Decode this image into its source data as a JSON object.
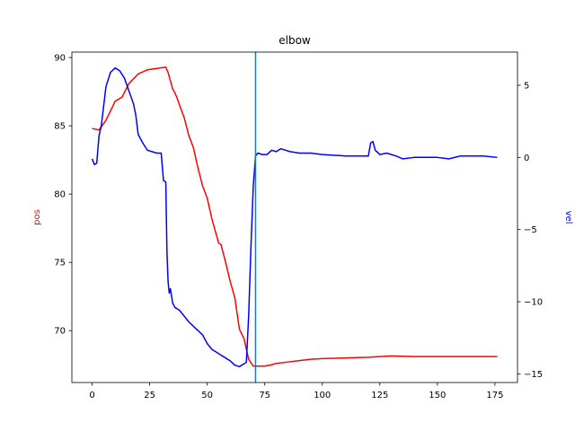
{
  "chart_data": {
    "type": "line",
    "title": "elbow",
    "xlabel": "",
    "ylabel_left": "pos",
    "ylabel_right": "vel",
    "xlim": [
      -8.8,
      184.8
    ],
    "ylim_left": [
      66.2,
      90.4
    ],
    "ylim_right": [
      -15.6,
      7.3
    ],
    "x_ticks": [
      0,
      25,
      50,
      75,
      100,
      125,
      150,
      175
    ],
    "y_left_ticks": [
      70,
      75,
      80,
      85,
      90
    ],
    "y_right_ticks": [
      -15,
      -10,
      -5,
      0,
      5
    ],
    "grid": false,
    "vline": {
      "x": 71,
      "color": "#1f77b4"
    },
    "series": [
      {
        "axis": "left",
        "color": "#ff0000",
        "x": [
          0,
          3,
          6,
          8,
          10,
          13,
          16,
          20,
          24,
          28,
          32,
          33,
          34,
          35,
          36,
          37,
          38,
          40,
          42,
          44,
          46,
          48,
          50,
          52,
          54,
          55,
          56,
          58,
          60,
          62,
          64,
          66,
          68,
          70,
          72,
          75,
          78,
          80,
          85,
          90,
          95,
          100,
          110,
          120,
          125,
          130,
          140,
          150,
          160,
          176
        ],
        "values": [
          84.8,
          84.7,
          85.4,
          86.1,
          86.8,
          87.1,
          88.1,
          88.8,
          89.1,
          89.2,
          89.3,
          88.9,
          88.3,
          87.7,
          87.4,
          87.0,
          86.5,
          85.6,
          84.3,
          83.4,
          81.9,
          80.6,
          79.7,
          78.2,
          77.0,
          76.4,
          76.3,
          75.0,
          73.6,
          72.4,
          70.1,
          69.4,
          67.9,
          67.4,
          67.4,
          67.4,
          67.5,
          67.6,
          67.7,
          67.8,
          67.9,
          67.95,
          68.0,
          68.05,
          68.1,
          68.15,
          68.1,
          68.1,
          68.1,
          68.1
        ]
      },
      {
        "axis": "right",
        "color": "#0000ff",
        "x": [
          0,
          1,
          2,
          3,
          4,
          6,
          8,
          10,
          12,
          14,
          16,
          18,
          19,
          20,
          22,
          24,
          26,
          28,
          30,
          31,
          32,
          32.5,
          33,
          33.5,
          34,
          35,
          36,
          38,
          40,
          42,
          44,
          46,
          48,
          50,
          52,
          54,
          56,
          58,
          60,
          62,
          64,
          66,
          67,
          68,
          69,
          70,
          71,
          72,
          74,
          76,
          78,
          80,
          82,
          84,
          86,
          90,
          95,
          100,
          110,
          120,
          121,
          122,
          123,
          125,
          128,
          132,
          135,
          140,
          145,
          150,
          155,
          160,
          165,
          170,
          176
        ],
        "values": [
          -0.1,
          -0.5,
          -0.4,
          1.5,
          2.2,
          4.9,
          5.9,
          6.2,
          6.0,
          5.5,
          4.6,
          3.7,
          2.9,
          1.6,
          1.0,
          0.5,
          0.4,
          0.3,
          0.3,
          -1.6,
          -1.7,
          -6.5,
          -8.6,
          -9.4,
          -9.1,
          -10.1,
          -10.4,
          -10.6,
          -11.0,
          -11.4,
          -11.7,
          -12.0,
          -12.3,
          -12.9,
          -13.3,
          -13.5,
          -13.7,
          -13.9,
          -14.1,
          -14.4,
          -14.5,
          -14.3,
          -14.2,
          -11.0,
          -6.2,
          -2.0,
          0.1,
          0.3,
          0.2,
          0.2,
          0.5,
          0.4,
          0.6,
          0.5,
          0.4,
          0.3,
          0.3,
          0.2,
          0.1,
          0.1,
          1.0,
          1.1,
          0.5,
          0.2,
          0.3,
          0.1,
          -0.1,
          0.0,
          0.0,
          0.0,
          -0.1,
          0.1,
          0.1,
          0.1,
          0.0
        ]
      }
    ]
  }
}
